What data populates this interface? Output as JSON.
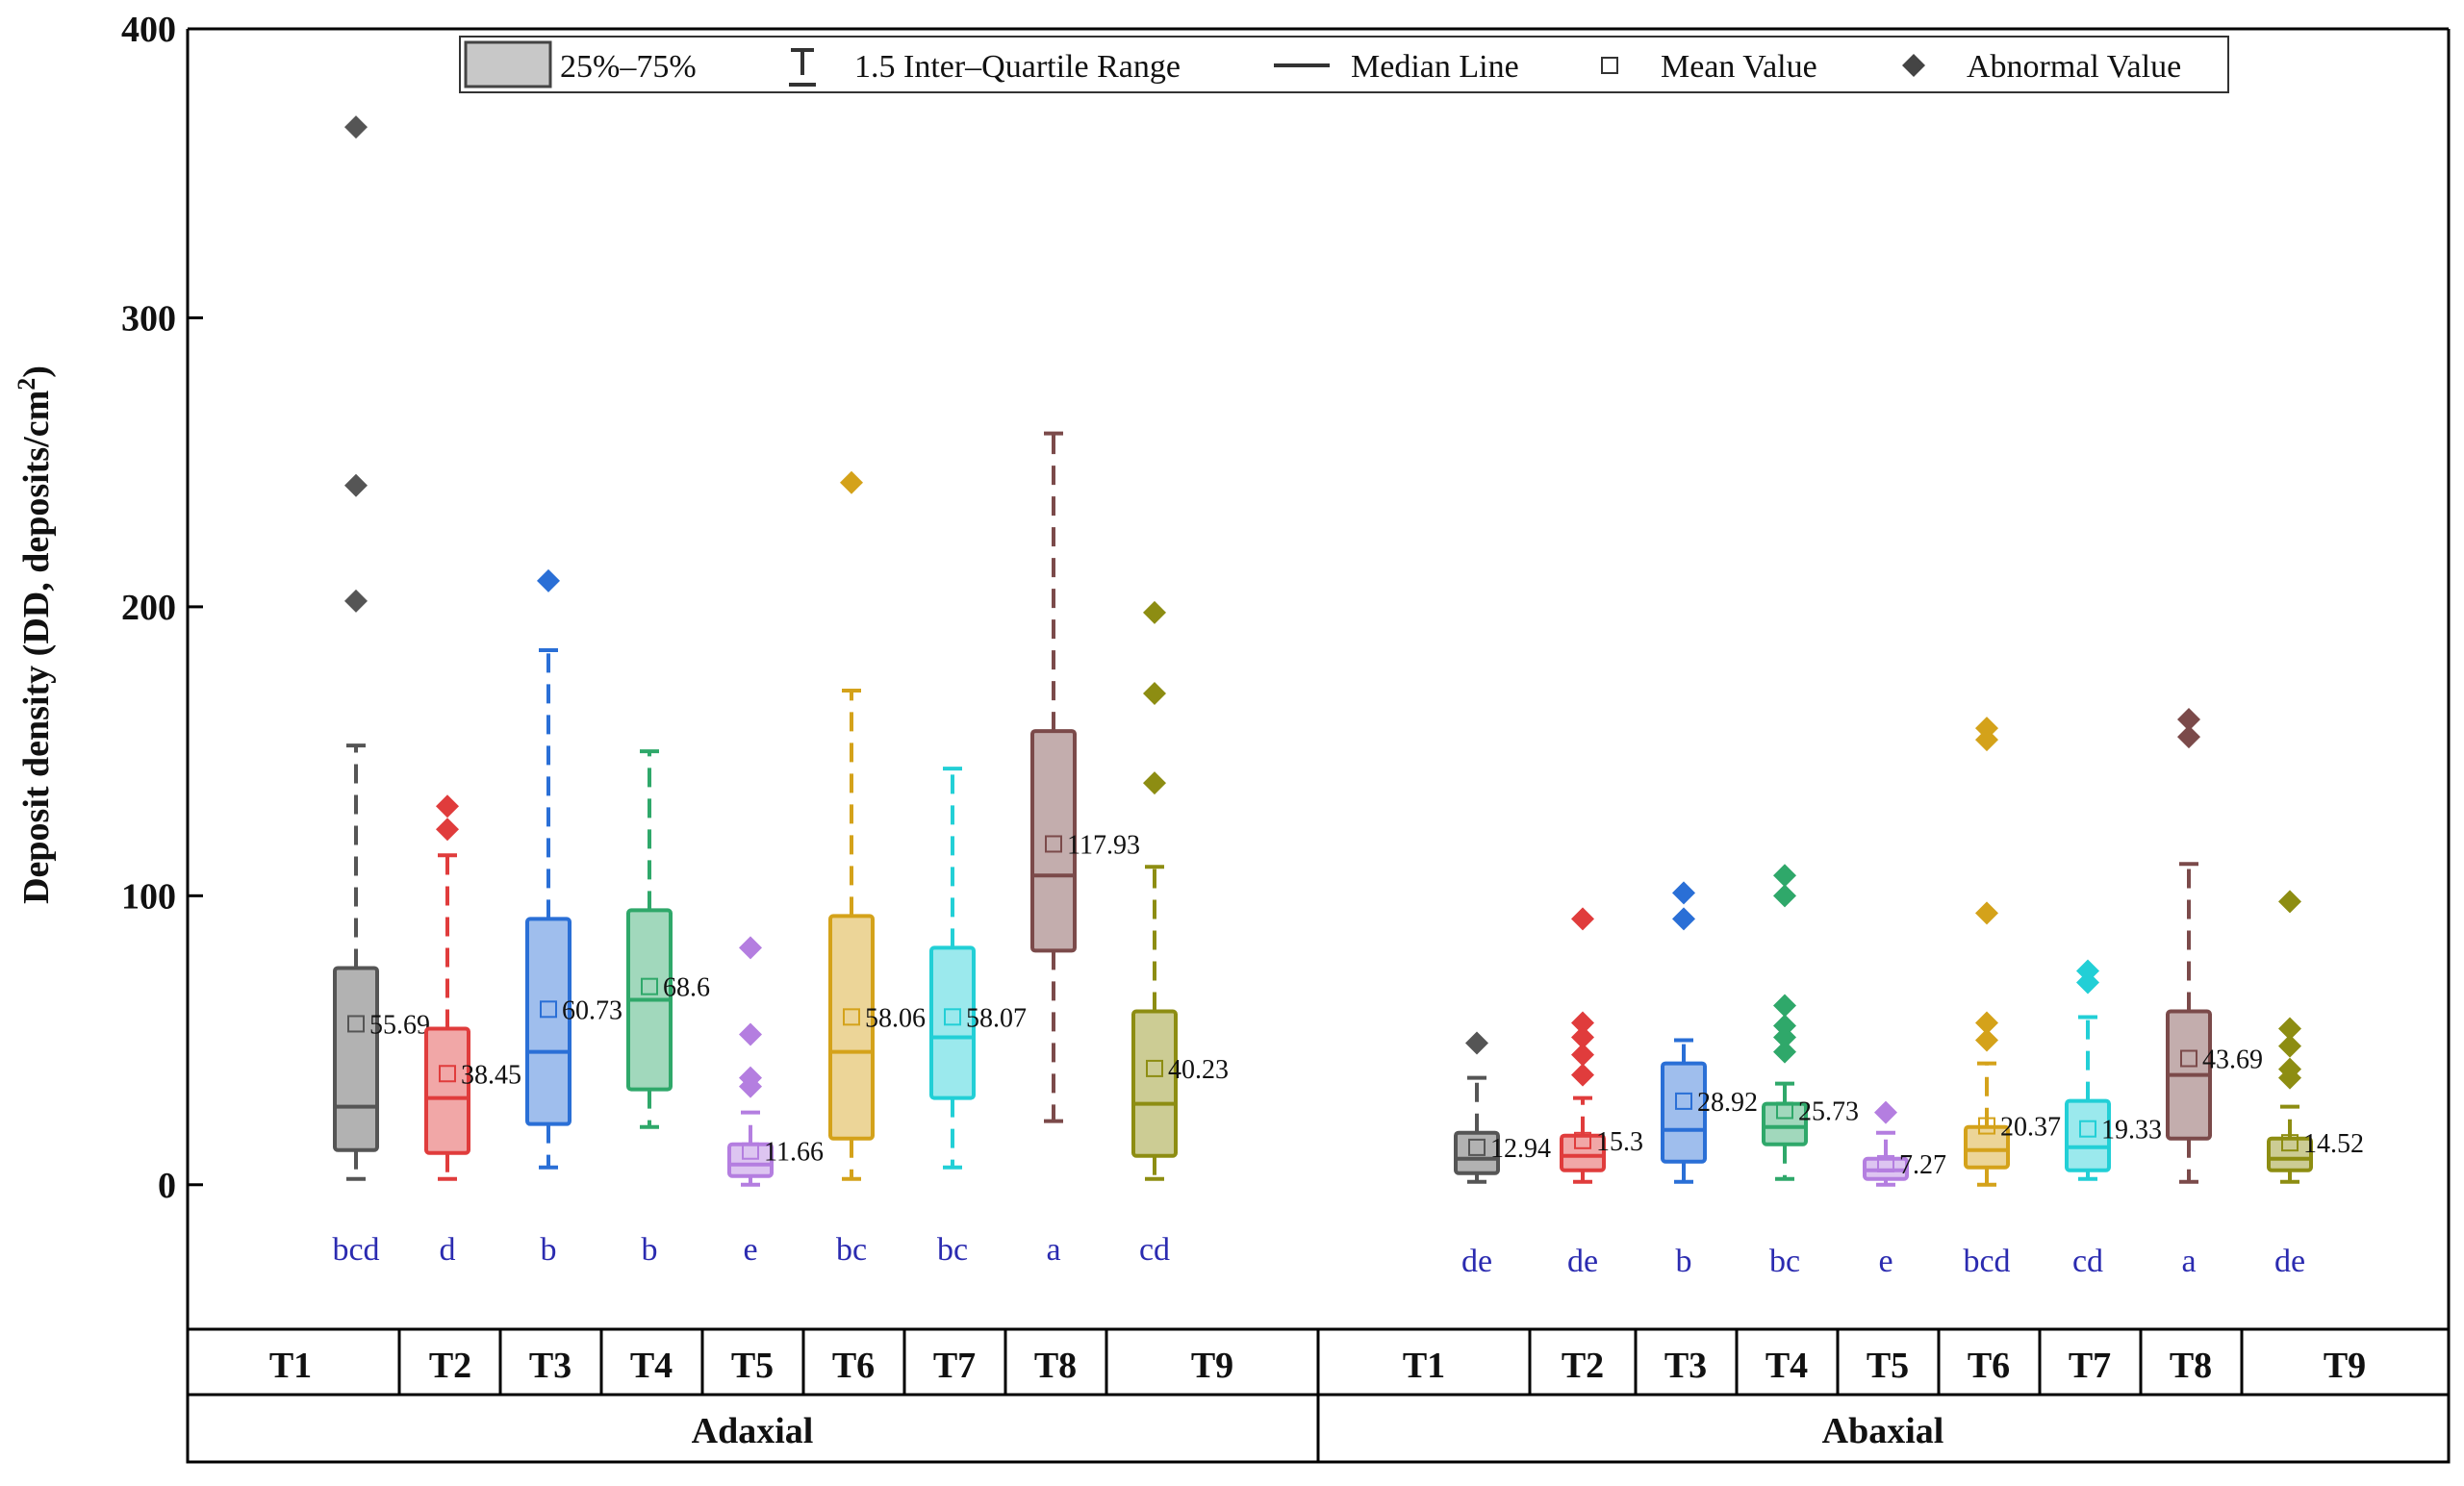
{
  "chart_data": {
    "type": "box",
    "ylabel": "Deposit density (DD, deposits/cm",
    "ylabel_sup": "2",
    "ylabel_close": ")",
    "ylim": [
      -50,
      400
    ],
    "yticks": [
      0,
      100,
      200,
      300,
      400
    ],
    "legend": {
      "position": "top",
      "items": [
        "25%–75%",
        "1.5 Inter–Quartile Range",
        "Median Line",
        "Mean Value",
        "Abnormal Value"
      ]
    },
    "colors": {
      "T1": "#555555",
      "T2": "#e03c3c",
      "T3": "#2a6fd6",
      "T4": "#2fa86a",
      "T5": "#b47ee0",
      "T6": "#d4a21a",
      "T7": "#22cfd6",
      "T8": "#7b4a4a",
      "T9": "#8d8d12"
    },
    "sections": [
      {
        "name": "Adaxial",
        "groups": [
          {
            "label": "T1",
            "q1": 12,
            "median": 27,
            "q3": 75,
            "mean": 55.69,
            "mean_label": "55.69",
            "wmin": 2,
            "wmax": 152,
            "outliers": [
              366,
              242,
              202
            ],
            "letter": "bcd"
          },
          {
            "label": "T2",
            "q1": 11,
            "median": 30,
            "q3": 54,
            "mean": 38.45,
            "mean_label": "38.45",
            "wmin": 2,
            "wmax": 114,
            "outliers": [
              131,
              123
            ],
            "letter": "d"
          },
          {
            "label": "T3",
            "q1": 21,
            "median": 46,
            "q3": 92,
            "mean": 60.73,
            "mean_label": "60.73",
            "wmin": 6,
            "wmax": 185,
            "outliers": [
              209
            ],
            "letter": "b"
          },
          {
            "label": "T4",
            "q1": 33,
            "median": 64,
            "q3": 95,
            "mean": 68.6,
            "mean_label": "68.6",
            "wmin": 20,
            "wmax": 150,
            "outliers": [],
            "letter": "b"
          },
          {
            "label": "T5",
            "q1": 3,
            "median": 7,
            "q3": 14,
            "mean": 11.66,
            "mean_label": "11.66",
            "wmin": 0,
            "wmax": 25,
            "outliers": [
              82,
              52,
              37,
              34
            ],
            "letter": "e"
          },
          {
            "label": "T6",
            "q1": 16,
            "median": 46,
            "q3": 93,
            "mean": 58.06,
            "mean_label": "58.06",
            "wmin": 2,
            "wmax": 171,
            "outliers": [
              243
            ],
            "letter": "bc"
          },
          {
            "label": "T7",
            "q1": 30,
            "median": 51,
            "q3": 82,
            "mean": 58.07,
            "mean_label": "58.07",
            "wmin": 6,
            "wmax": 144,
            "outliers": [],
            "letter": "bc"
          },
          {
            "label": "T8",
            "q1": 81,
            "median": 107,
            "q3": 157,
            "mean": 117.93,
            "mean_label": "117.93",
            "wmin": 22,
            "wmax": 260,
            "outliers": [],
            "letter": "a"
          },
          {
            "label": "T9",
            "q1": 10,
            "median": 28,
            "q3": 60,
            "mean": 40.23,
            "mean_label": "40.23",
            "wmin": 2,
            "wmax": 110,
            "outliers": [
              198,
              170,
              139
            ],
            "letter": "cd"
          }
        ]
      },
      {
        "name": "Abaxial",
        "groups": [
          {
            "label": "T1",
            "q1": 4,
            "median": 9,
            "q3": 18,
            "mean": 12.94,
            "mean_label": "12.94",
            "wmin": 1,
            "wmax": 37,
            "outliers": [
              49
            ],
            "letter": "de"
          },
          {
            "label": "T2",
            "q1": 5,
            "median": 10,
            "q3": 17,
            "mean": 15.3,
            "mean_label": "15.3",
            "wmin": 1,
            "wmax": 30,
            "outliers": [
              92,
              56,
              51,
              45,
              38
            ],
            "letter": "de"
          },
          {
            "label": "T3",
            "q1": 8,
            "median": 19,
            "q3": 42,
            "mean": 28.92,
            "mean_label": "28.92",
            "wmin": 1,
            "wmax": 50,
            "outliers": [
              101,
              92
            ],
            "letter": "b"
          },
          {
            "label": "T4",
            "q1": 14,
            "median": 20,
            "q3": 28,
            "mean": 25.73,
            "mean_label": "25.73",
            "wmin": 2,
            "wmax": 35,
            "outliers": [
              107,
              100,
              62,
              55,
              51,
              46
            ],
            "letter": "bc"
          },
          {
            "label": "T5",
            "q1": 2,
            "median": 5,
            "q3": 9,
            "mean": 7.27,
            "mean_label": "7.27",
            "wmin": 0,
            "wmax": 18,
            "outliers": [
              25
            ],
            "letter": "e"
          },
          {
            "label": "T6",
            "q1": 6,
            "median": 12,
            "q3": 20,
            "mean": 20.37,
            "mean_label": "20.37",
            "wmin": 0,
            "wmax": 42,
            "outliers": [
              158,
              154,
              94,
              56,
              50
            ],
            "letter": "bcd"
          },
          {
            "label": "T7",
            "q1": 5,
            "median": 13,
            "q3": 29,
            "mean": 19.33,
            "mean_label": "19.33",
            "wmin": 2,
            "wmax": 58,
            "outliers": [
              74,
              70
            ],
            "letter": "cd"
          },
          {
            "label": "T8",
            "q1": 16,
            "median": 38,
            "q3": 60,
            "mean": 43.69,
            "mean_label": "43.69",
            "wmin": 1,
            "wmax": 111,
            "outliers": [
              161,
              155
            ],
            "letter": "a"
          },
          {
            "label": "T9",
            "q1": 5,
            "median": 9,
            "q3": 16,
            "mean": 14.52,
            "mean_label": "14.52",
            "wmin": 1,
            "wmax": 27,
            "outliers": [
              98,
              54,
              48,
              40,
              37
            ],
            "letter": "de"
          }
        ]
      }
    ]
  }
}
